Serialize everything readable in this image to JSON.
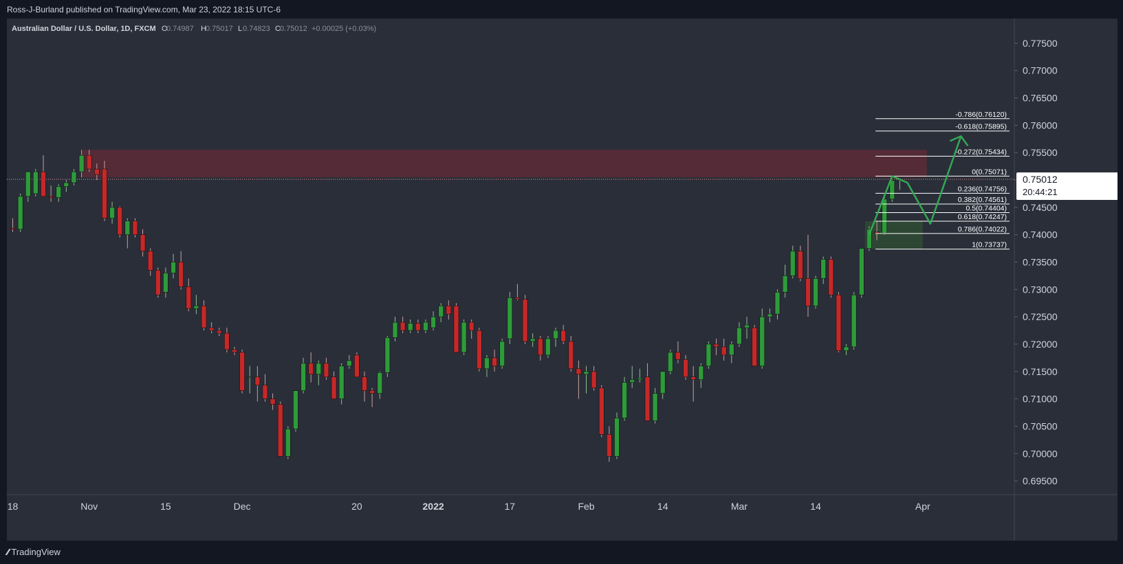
{
  "publisher": "Ross-J-Burland published on TradingView.com, Mar 23, 2022 18:15 UTC-6",
  "footer": {
    "brand": "TradingView",
    "logo_icon": "tradingview-logo-icon"
  },
  "colors": {
    "up": "#4caf50",
    "down": "#e53935",
    "up_body": "#2e9b3a",
    "down_body": "#c62828",
    "zone": "#5c2a36",
    "fib_zone": "#2f4a35",
    "arrow": "#34a853",
    "fib_line": "#ffffff"
  },
  "chart_data": {
    "type": "candlestick",
    "symbol": "Australian Dollar / U.S. Dollar, 1D, FXCM",
    "ohlc": {
      "O_label": "O",
      "O": "0.74987",
      "H_label": "H",
      "H": "0.75017",
      "L_label": "L",
      "L": "0.74823",
      "C_label": "C",
      "C": "0.75012",
      "change": "+0.00025 (+0.03%)"
    },
    "ylim": [
      0.6925,
      0.7795
    ],
    "y_ticks": [
      "0.77500",
      "0.77000",
      "0.76500",
      "0.76000",
      "0.75500",
      "0.75000",
      "0.74500",
      "0.74000",
      "0.73500",
      "0.73000",
      "0.72500",
      "0.72000",
      "0.71500",
      "0.71000",
      "0.70500",
      "0.70000",
      "0.69500"
    ],
    "x_ticks": [
      {
        "label": "18",
        "i": 0
      },
      {
        "label": "Nov",
        "i": 10
      },
      {
        "label": "15",
        "i": 20
      },
      {
        "label": "Dec",
        "i": 30
      },
      {
        "label": "20",
        "i": 45
      },
      {
        "label": "2022",
        "i": 55
      },
      {
        "label": "17",
        "i": 65
      },
      {
        "label": "Feb",
        "i": 75
      },
      {
        "label": "14",
        "i": 85
      },
      {
        "label": "Mar",
        "i": 95
      },
      {
        "label": "14",
        "i": 105
      },
      {
        "label": "Apr",
        "i": 119
      }
    ],
    "last_price": "0.75012",
    "countdown": "20:44:21",
    "candles": [
      [
        0.7412,
        0.743,
        0.7405,
        0.741
      ],
      [
        0.741,
        0.7475,
        0.7405,
        0.747
      ],
      [
        0.747,
        0.7515,
        0.746,
        0.7515
      ],
      [
        0.7475,
        0.752,
        0.747,
        0.7515
      ],
      [
        0.7515,
        0.7545,
        0.747,
        0.747
      ],
      [
        0.747,
        0.749,
        0.746,
        0.7468
      ],
      [
        0.7468,
        0.7492,
        0.746,
        0.7488
      ],
      [
        0.7488,
        0.75,
        0.7478,
        0.7495
      ],
      [
        0.7495,
        0.752,
        0.749,
        0.7515
      ],
      [
        0.7515,
        0.7555,
        0.7505,
        0.7545
      ],
      [
        0.7545,
        0.7555,
        0.7515,
        0.752
      ],
      [
        0.752,
        0.753,
        0.75,
        0.751
      ],
      [
        0.752,
        0.7535,
        0.7425,
        0.743
      ],
      [
        0.743,
        0.746,
        0.742,
        0.745
      ],
      [
        0.745,
        0.7452,
        0.7395,
        0.74
      ],
      [
        0.74,
        0.743,
        0.7375,
        0.7425
      ],
      [
        0.7425,
        0.743,
        0.7395,
        0.74
      ],
      [
        0.74,
        0.741,
        0.736,
        0.737
      ],
      [
        0.737,
        0.7375,
        0.7325,
        0.7335
      ],
      [
        0.7335,
        0.734,
        0.7285,
        0.729
      ],
      [
        0.7295,
        0.734,
        0.7285,
        0.733
      ],
      [
        0.733,
        0.7365,
        0.732,
        0.735
      ],
      [
        0.735,
        0.737,
        0.73,
        0.7305
      ],
      [
        0.7305,
        0.732,
        0.726,
        0.7265
      ],
      [
        0.7265,
        0.729,
        0.7255,
        0.727
      ],
      [
        0.727,
        0.728,
        0.7225,
        0.723
      ],
      [
        0.723,
        0.724,
        0.722,
        0.7225
      ],
      [
        0.7225,
        0.723,
        0.7215,
        0.722
      ],
      [
        0.722,
        0.723,
        0.7185,
        0.719
      ],
      [
        0.719,
        0.7195,
        0.718,
        0.7185
      ],
      [
        0.7185,
        0.719,
        0.711,
        0.7115
      ],
      [
        0.714,
        0.716,
        0.711,
        0.714
      ],
      [
        0.714,
        0.716,
        0.7095,
        0.7125
      ],
      [
        0.7125,
        0.7145,
        0.7095,
        0.71
      ],
      [
        0.71,
        0.711,
        0.708,
        0.709
      ],
      [
        0.709,
        0.7095,
        0.6995,
        0.6995
      ],
      [
        0.6995,
        0.705,
        0.699,
        0.7045
      ],
      [
        0.7045,
        0.7115,
        0.704,
        0.7115
      ],
      [
        0.7115,
        0.7175,
        0.711,
        0.7165
      ],
      [
        0.7165,
        0.7185,
        0.713,
        0.7145
      ],
      [
        0.7145,
        0.717,
        0.7125,
        0.7165
      ],
      [
        0.7165,
        0.7175,
        0.7135,
        0.714
      ],
      [
        0.714,
        0.715,
        0.7105,
        0.71
      ],
      [
        0.71,
        0.7165,
        0.709,
        0.716
      ],
      [
        0.716,
        0.718,
        0.7155,
        0.717
      ],
      [
        0.718,
        0.7185,
        0.714,
        0.714
      ],
      [
        0.714,
        0.715,
        0.7095,
        0.7115
      ],
      [
        0.7115,
        0.712,
        0.7085,
        0.711
      ],
      [
        0.711,
        0.715,
        0.71,
        0.7148
      ],
      [
        0.7148,
        0.7215,
        0.714,
        0.7212
      ],
      [
        0.7212,
        0.725,
        0.7205,
        0.724
      ],
      [
        0.724,
        0.725,
        0.722,
        0.7225
      ],
      [
        0.7225,
        0.7245,
        0.722,
        0.7238
      ],
      [
        0.7238,
        0.7245,
        0.722,
        0.7225
      ],
      [
        0.7225,
        0.7245,
        0.722,
        0.724
      ],
      [
        0.723,
        0.726,
        0.7225,
        0.725
      ],
      [
        0.725,
        0.7275,
        0.724,
        0.727
      ],
      [
        0.727,
        0.728,
        0.7245,
        0.7255
      ],
      [
        0.727,
        0.7275,
        0.7185,
        0.7185
      ],
      [
        0.7185,
        0.7245,
        0.718,
        0.724
      ],
      [
        0.724,
        0.7245,
        0.721,
        0.7225
      ],
      [
        0.7225,
        0.723,
        0.715,
        0.7155
      ],
      [
        0.7155,
        0.718,
        0.714,
        0.7175
      ],
      [
        0.7175,
        0.719,
        0.715,
        0.716
      ],
      [
        0.716,
        0.721,
        0.7155,
        0.7205
      ],
      [
        0.721,
        0.7295,
        0.72,
        0.7285
      ],
      [
        0.7285,
        0.731,
        0.728,
        0.7282
      ],
      [
        0.7282,
        0.729,
        0.72,
        0.7205
      ],
      [
        0.7205,
        0.722,
        0.7195,
        0.721
      ],
      [
        0.721,
        0.7215,
        0.717,
        0.718
      ],
      [
        0.718,
        0.7215,
        0.7175,
        0.721
      ],
      [
        0.721,
        0.723,
        0.7195,
        0.7225
      ],
      [
        0.7225,
        0.7235,
        0.72,
        0.7205
      ],
      [
        0.7205,
        0.7215,
        0.715,
        0.7155
      ],
      [
        0.7155,
        0.717,
        0.71,
        0.7145
      ],
      [
        0.7145,
        0.716,
        0.711,
        0.715
      ],
      [
        0.715,
        0.716,
        0.7115,
        0.712
      ],
      [
        0.712,
        0.7125,
        0.703,
        0.7035
      ],
      [
        0.7035,
        0.705,
        0.6985,
        0.6995
      ],
      [
        0.6995,
        0.7075,
        0.699,
        0.7065
      ],
      [
        0.7065,
        0.714,
        0.706,
        0.713
      ],
      [
        0.713,
        0.716,
        0.712,
        0.7135
      ],
      [
        0.7135,
        0.7155,
        0.713,
        0.7138
      ],
      [
        0.714,
        0.7165,
        0.706,
        0.706
      ],
      [
        0.706,
        0.712,
        0.7055,
        0.711
      ],
      [
        0.711,
        0.715,
        0.71,
        0.715
      ],
      [
        0.715,
        0.719,
        0.7145,
        0.7185
      ],
      [
        0.7185,
        0.7205,
        0.7165,
        0.7172
      ],
      [
        0.7172,
        0.718,
        0.7135,
        0.714
      ],
      [
        0.714,
        0.716,
        0.7095,
        0.7135
      ],
      [
        0.7135,
        0.7165,
        0.712,
        0.716
      ],
      [
        0.716,
        0.7205,
        0.7155,
        0.72
      ],
      [
        0.72,
        0.721,
        0.718,
        0.7195
      ],
      [
        0.7195,
        0.721,
        0.717,
        0.718
      ],
      [
        0.718,
        0.7205,
        0.7165,
        0.72
      ],
      [
        0.72,
        0.724,
        0.7195,
        0.723
      ],
      [
        0.723,
        0.725,
        0.721,
        0.7235
      ],
      [
        0.723,
        0.7235,
        0.716,
        0.716
      ],
      [
        0.716,
        0.7265,
        0.7155,
        0.725
      ],
      [
        0.725,
        0.7265,
        0.724,
        0.7255
      ],
      [
        0.7255,
        0.73,
        0.7245,
        0.7295
      ],
      [
        0.7295,
        0.7345,
        0.7285,
        0.7325
      ],
      [
        0.7325,
        0.738,
        0.732,
        0.737
      ],
      [
        0.737,
        0.738,
        0.7315,
        0.732
      ],
      [
        0.732,
        0.74,
        0.725,
        0.727
      ],
      [
        0.727,
        0.7325,
        0.7265,
        0.732
      ],
      [
        0.732,
        0.736,
        0.731,
        0.7355
      ],
      [
        0.7355,
        0.736,
        0.7285,
        0.729
      ],
      [
        0.729,
        0.7295,
        0.7185,
        0.7188
      ],
      [
        0.7188,
        0.72,
        0.718,
        0.7195
      ],
      [
        0.7195,
        0.7295,
        0.719,
        0.729
      ],
      [
        0.729,
        0.7375,
        0.7285,
        0.7375
      ],
      [
        0.7375,
        0.7415,
        0.737,
        0.741
      ],
      [
        0.7405,
        0.7425,
        0.739,
        0.7403
      ],
      [
        0.7403,
        0.747,
        0.74,
        0.7465
      ],
      [
        0.7465,
        0.75,
        0.746,
        0.7499
      ],
      [
        0.7499,
        0.7502,
        0.7482,
        0.7501
      ]
    ],
    "resistance_zone": {
      "top": 0.7555,
      "bottom": 0.7505,
      "from_index": 9,
      "to_index": 119
    },
    "support_zone": {
      "top": 0.74247,
      "bottom": 0.73737,
      "from_index": 112,
      "to_index": 119
    },
    "fibonacci": [
      {
        "label": "-0.786(0.76120)",
        "value": 0.7612
      },
      {
        "label": "-0.618(0.75895)",
        "value": 0.75895
      },
      {
        "label": "-0.272(0.75434)",
        "value": 0.75434
      },
      {
        "label": "0(0.75071)",
        "value": 0.75071
      },
      {
        "label": "0.236(0.74756)",
        "value": 0.74756
      },
      {
        "label": "0.382(0.74561)",
        "value": 0.74561
      },
      {
        "label": "0.5(0.74404)",
        "value": 0.74404
      },
      {
        "label": "0.618(0.74247)",
        "value": 0.74247
      },
      {
        "label": "0.786(0.74022)",
        "value": 0.74022
      },
      {
        "label": "1(0.73737)",
        "value": 0.73737
      }
    ],
    "projection_path": [
      {
        "i": 112,
        "v": 0.74
      },
      {
        "i": 115,
        "v": 0.7507
      },
      {
        "i": 117,
        "v": 0.7495
      },
      {
        "i": 120,
        "v": 0.742
      },
      {
        "i": 124,
        "v": 0.758
      }
    ]
  }
}
